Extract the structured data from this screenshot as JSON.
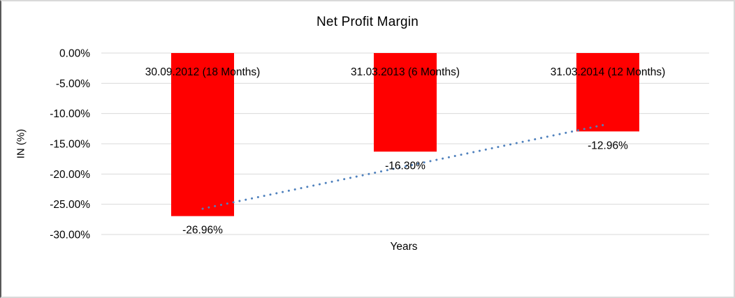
{
  "chart_data": {
    "type": "bar",
    "title": "Net Profit Margin",
    "xlabel": "Years",
    "ylabel": "IN (%)",
    "categories": [
      "30.09.2012 (18 Months)",
      "31.03.2013 (6 Months)",
      "31.03.2014 (12 Months)"
    ],
    "values": [
      -26.96,
      -16.3,
      -12.96
    ],
    "data_labels": [
      "-26.96%",
      "-16.30%",
      "-12.96%"
    ],
    "y_ticks": [
      "0.00%",
      "-5.00%",
      "-10.00%",
      "-15.00%",
      "-20.00%",
      "-25.00%",
      "-30.00%"
    ],
    "y_tick_values": [
      0,
      -5,
      -10,
      -15,
      -20,
      -25,
      -30
    ],
    "ylim": [
      -30,
      0
    ],
    "grid": true,
    "legend": "none",
    "bar_color": "#ff0000",
    "trendline": {
      "type": "linear",
      "style": "dotted",
      "color": "#4f81bd"
    },
    "gridline_color": "#d9d9d9",
    "text_color": "#000000"
  }
}
